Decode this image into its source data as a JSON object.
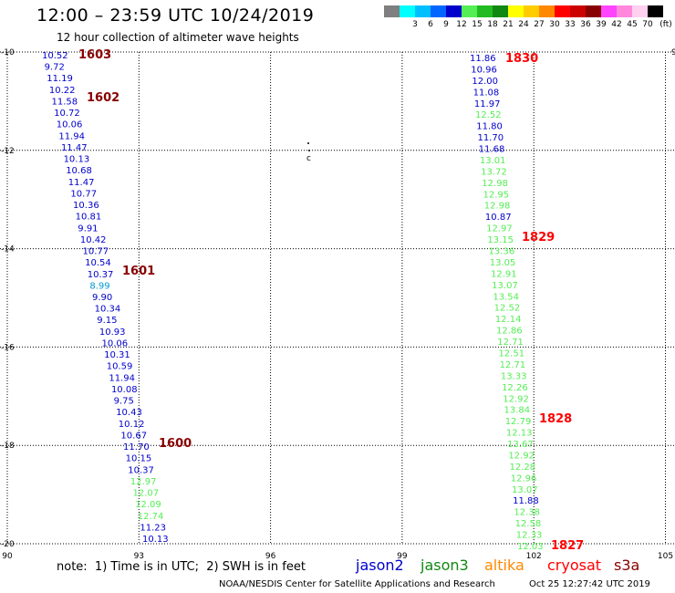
{
  "header": {
    "title": "12:00 – 23:59 UTC 10/24/2019",
    "subtitle": "12 hour collection of altimeter wave heights"
  },
  "legend": {
    "unit": "(ft)",
    "items": [
      {
        "label": "",
        "color": "#7f7f7f"
      },
      {
        "label": "3",
        "color": "#00ffff"
      },
      {
        "label": "6",
        "color": "#00bfff"
      },
      {
        "label": "9",
        "color": "#0066ff"
      },
      {
        "label": "12",
        "color": "#0000cc"
      },
      {
        "label": "15",
        "color": "#55ee55"
      },
      {
        "label": "18",
        "color": "#22bb22"
      },
      {
        "label": "21",
        "color": "#118811"
      },
      {
        "label": "24",
        "color": "#ffff00"
      },
      {
        "label": "27",
        "color": "#ffcc00"
      },
      {
        "label": "30",
        "color": "#ff8800"
      },
      {
        "label": "33",
        "color": "#ff0000"
      },
      {
        "label": "36",
        "color": "#cc0000"
      },
      {
        "label": "39",
        "color": "#880000"
      },
      {
        "label": "42",
        "color": "#ff44ff"
      },
      {
        "label": "45",
        "color": "#ff88dd"
      },
      {
        "label": "70",
        "color": "#ffd0f0"
      },
      {
        "label": "",
        "color": "#000000"
      }
    ]
  },
  "map": {
    "lon_range": [
      90,
      105
    ],
    "lat_range": [
      -20,
      -10
    ],
    "x_ticks": [
      "90",
      "93",
      "96",
      "99",
      "102",
      "105"
    ],
    "y_ticks": [
      "-10",
      "-12",
      "-14",
      "-16",
      "-18",
      "-20"
    ],
    "edge_label": "9",
    "island_label": "c",
    "track_left": [
      {
        "v": "10.52",
        "c": "#0000cc"
      },
      {
        "v": "9.72",
        "c": "#0000cc"
      },
      {
        "v": "11.19",
        "c": "#0000cc"
      },
      {
        "v": "10.22",
        "c": "#0000cc"
      },
      {
        "v": "11.58",
        "c": "#0000cc"
      },
      {
        "v": "10.72",
        "c": "#0000cc"
      },
      {
        "v": "10.06",
        "c": "#0000cc"
      },
      {
        "v": "11.94",
        "c": "#0000cc"
      },
      {
        "v": "11.47",
        "c": "#0000cc"
      },
      {
        "v": "10.13",
        "c": "#0000cc"
      },
      {
        "v": "10.68",
        "c": "#0000cc"
      },
      {
        "v": "11.47",
        "c": "#0000cc"
      },
      {
        "v": "10.77",
        "c": "#0000cc"
      },
      {
        "v": "10.36",
        "c": "#0000cc"
      },
      {
        "v": "10.81",
        "c": "#0000cc"
      },
      {
        "v": "9.91",
        "c": "#0000cc"
      },
      {
        "v": "10.42",
        "c": "#0000cc"
      },
      {
        "v": "10.77",
        "c": "#0000cc"
      },
      {
        "v": "10.54",
        "c": "#0000cc"
      },
      {
        "v": "10.37",
        "c": "#0000cc"
      },
      {
        "v": "8.99",
        "c": "#0099cc"
      },
      {
        "v": "9.90",
        "c": "#0000cc"
      },
      {
        "v": "10.34",
        "c": "#0000cc"
      },
      {
        "v": "9.15",
        "c": "#0000cc"
      },
      {
        "v": "10.93",
        "c": "#0000cc"
      },
      {
        "v": "10.06",
        "c": "#0000cc"
      },
      {
        "v": "10.31",
        "c": "#0000cc"
      },
      {
        "v": "10.59",
        "c": "#0000cc"
      },
      {
        "v": "11.94",
        "c": "#0000cc"
      },
      {
        "v": "10.08",
        "c": "#0000cc"
      },
      {
        "v": "9.75",
        "c": "#0000cc"
      },
      {
        "v": "10.43",
        "c": "#0000cc"
      },
      {
        "v": "10.12",
        "c": "#0000cc"
      },
      {
        "v": "10.67",
        "c": "#0000cc"
      },
      {
        "v": "11.70",
        "c": "#0000cc"
      },
      {
        "v": "10.15",
        "c": "#0000cc"
      },
      {
        "v": "10.37",
        "c": "#0000cc"
      },
      {
        "v": "12.97",
        "c": "#55ee55"
      },
      {
        "v": "12.07",
        "c": "#55ee55"
      },
      {
        "v": "12.09",
        "c": "#55ee55"
      },
      {
        "v": "12.74",
        "c": "#55ee55"
      },
      {
        "v": "11.23",
        "c": "#0000cc"
      },
      {
        "v": "10.13",
        "c": "#0000cc"
      }
    ],
    "track_right": [
      {
        "v": "11.86",
        "c": "#0000cc"
      },
      {
        "v": "10.96",
        "c": "#0000cc"
      },
      {
        "v": "12.00",
        "c": "#0000cc"
      },
      {
        "v": "11.08",
        "c": "#0000cc"
      },
      {
        "v": "11.97",
        "c": "#0000cc"
      },
      {
        "v": "12.52",
        "c": "#55ee55"
      },
      {
        "v": "11.80",
        "c": "#0000cc"
      },
      {
        "v": "11.70",
        "c": "#0000cc"
      },
      {
        "v": "11.68",
        "c": "#0000cc"
      },
      {
        "v": "13.01",
        "c": "#55ee55"
      },
      {
        "v": "13.72",
        "c": "#55ee55"
      },
      {
        "v": "12.98",
        "c": "#55ee55"
      },
      {
        "v": "12.95",
        "c": "#55ee55"
      },
      {
        "v": "12.98",
        "c": "#55ee55"
      },
      {
        "v": "10.87",
        "c": "#0000cc"
      },
      {
        "v": "12.97",
        "c": "#55ee55"
      },
      {
        "v": "13.15",
        "c": "#55ee55"
      },
      {
        "v": "13.36",
        "c": "#55ee55"
      },
      {
        "v": "13.05",
        "c": "#55ee55"
      },
      {
        "v": "12.91",
        "c": "#55ee55"
      },
      {
        "v": "13.07",
        "c": "#55ee55"
      },
      {
        "v": "13.54",
        "c": "#55ee55"
      },
      {
        "v": "12.52",
        "c": "#55ee55"
      },
      {
        "v": "12.14",
        "c": "#55ee55"
      },
      {
        "v": "12.86",
        "c": "#55ee55"
      },
      {
        "v": "12.71",
        "c": "#55ee55"
      },
      {
        "v": "12.51",
        "c": "#55ee55"
      },
      {
        "v": "12.71",
        "c": "#55ee55"
      },
      {
        "v": "13.33",
        "c": "#55ee55"
      },
      {
        "v": "12.26",
        "c": "#55ee55"
      },
      {
        "v": "12.92",
        "c": "#55ee55"
      },
      {
        "v": "13.84",
        "c": "#55ee55"
      },
      {
        "v": "12.79",
        "c": "#55ee55"
      },
      {
        "v": "12.13",
        "c": "#55ee55"
      },
      {
        "v": "13.67",
        "c": "#55ee55"
      },
      {
        "v": "12.92",
        "c": "#55ee55"
      },
      {
        "v": "12.28",
        "c": "#55ee55"
      },
      {
        "v": "12.96",
        "c": "#55ee55"
      },
      {
        "v": "13.07",
        "c": "#55ee55"
      },
      {
        "v": "11.88",
        "c": "#0000cc"
      },
      {
        "v": "12.38",
        "c": "#55ee55"
      },
      {
        "v": "12.58",
        "c": "#55ee55"
      },
      {
        "v": "12.33",
        "c": "#55ee55"
      },
      {
        "v": "12.03",
        "c": "#55ee55"
      }
    ],
    "times_left": [
      {
        "t": "1603",
        "color": "#880000"
      },
      {
        "t": "1602",
        "color": "#880000"
      },
      {
        "t": "1601",
        "color": "#880000"
      },
      {
        "t": "1600",
        "color": "#880000"
      }
    ],
    "times_right": [
      {
        "t": "1830",
        "color": "#ff0000"
      },
      {
        "t": "1829",
        "color": "#ff0000"
      },
      {
        "t": "1828",
        "color": "#ff0000"
      },
      {
        "t": "1827",
        "color": "#ff0000"
      }
    ]
  },
  "footer": {
    "note": "note:  1) Time is in UTC;  2) SWH is in feet",
    "satellites": [
      {
        "name": "jason2",
        "color": "#0000cc"
      },
      {
        "name": "jason3",
        "color": "#118811"
      },
      {
        "name": "altika",
        "color": "#ff8800"
      },
      {
        "name": "cryosat",
        "color": "#ff0000"
      },
      {
        "name": "s3a",
        "color": "#880000"
      }
    ],
    "credit": "NOAA/NESDIS Center for Satellite Applications and Research",
    "timestamp": "Oct 25 12:27:42 UTC 2019"
  }
}
